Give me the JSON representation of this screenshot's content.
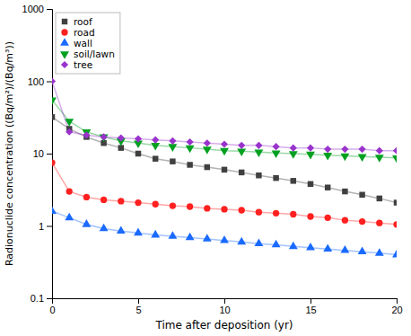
{
  "chart_data": {
    "type": "line",
    "xlabel": "Time after deposition (yr)",
    "ylabel": "Radionuclide concentration ((Bq/m²)/(Bq/m³))",
    "xlim": [
      0,
      20
    ],
    "ylim": [
      0.1,
      1000
    ],
    "xticks": [
      0,
      5,
      10,
      15,
      20
    ],
    "yticks": [
      0.1,
      1,
      10,
      100,
      1000
    ],
    "log": "y",
    "legend": "upper left",
    "x": [
      0,
      1,
      2,
      3,
      4,
      5,
      6,
      7,
      8,
      9,
      10,
      11,
      12,
      13,
      14,
      15,
      16,
      17,
      18,
      19,
      20
    ],
    "series": [
      {
        "name": "roof",
        "color": "#404040",
        "marker": "square",
        "values": [
          32,
          22,
          17,
          14,
          12,
          10,
          8.5,
          7.8,
          7.0,
          6.5,
          6.0,
          5.5,
          5.0,
          4.6,
          4.2,
          3.8,
          3.4,
          3.0,
          2.7,
          2.4,
          2.1
        ]
      },
      {
        "name": "road",
        "color": "#ff2020",
        "marker": "circle",
        "values": [
          7.5,
          3.0,
          2.5,
          2.3,
          2.2,
          2.1,
          2.0,
          1.9,
          1.85,
          1.75,
          1.7,
          1.65,
          1.55,
          1.5,
          1.45,
          1.35,
          1.3,
          1.2,
          1.15,
          1.1,
          1.05
        ]
      },
      {
        "name": "wall",
        "color": "#1a6aff",
        "marker": "triangle-up",
        "values": [
          1.6,
          1.3,
          1.05,
          0.92,
          0.85,
          0.8,
          0.75,
          0.72,
          0.69,
          0.66,
          0.63,
          0.6,
          0.57,
          0.55,
          0.52,
          0.5,
          0.48,
          0.46,
          0.44,
          0.42,
          0.4
        ]
      },
      {
        "name": "soil/lawn",
        "color": "#00a020",
        "marker": "triangle-down",
        "values": [
          55,
          28,
          20,
          17,
          15,
          14,
          13,
          12.5,
          12,
          11.5,
          11,
          10.8,
          10.5,
          10.2,
          10.0,
          9.8,
          9.5,
          9.3,
          9.1,
          8.9,
          8.7
        ]
      },
      {
        "name": "tree",
        "color": "#9933cc",
        "marker": "diamond",
        "values": [
          100,
          20,
          18,
          17,
          16.5,
          16,
          15.5,
          15,
          14.5,
          14,
          13.5,
          13,
          13,
          12.5,
          12,
          12,
          11.5,
          11.5,
          11.5,
          11,
          11
        ]
      }
    ]
  }
}
